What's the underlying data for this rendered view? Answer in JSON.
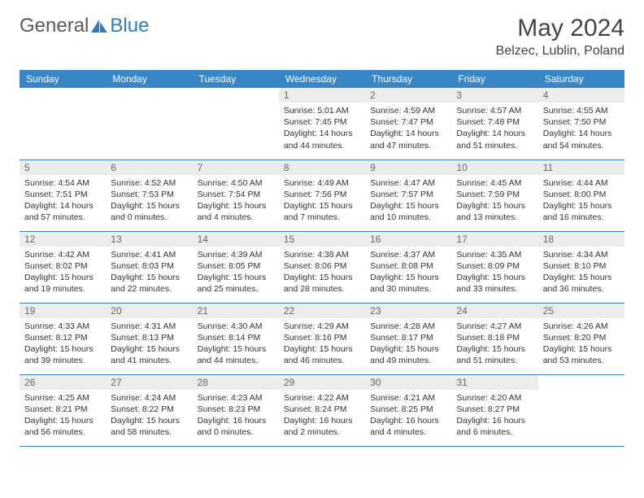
{
  "logo": {
    "text1": "General",
    "text2": "Blue"
  },
  "title": "May 2024",
  "location": "Belzec, Lublin, Poland",
  "colors": {
    "headerBg": "#3885c7",
    "headerText": "#ffffff",
    "dayNumBg": "#ececec",
    "border": "#3885c7"
  },
  "weekdays": [
    "Sunday",
    "Monday",
    "Tuesday",
    "Wednesday",
    "Thursday",
    "Friday",
    "Saturday"
  ],
  "weeks": [
    [
      null,
      null,
      null,
      {
        "n": "1",
        "sr": "5:01 AM",
        "ss": "7:45 PM",
        "dl": "14 hours and 44 minutes."
      },
      {
        "n": "2",
        "sr": "4:59 AM",
        "ss": "7:47 PM",
        "dl": "14 hours and 47 minutes."
      },
      {
        "n": "3",
        "sr": "4:57 AM",
        "ss": "7:48 PM",
        "dl": "14 hours and 51 minutes."
      },
      {
        "n": "4",
        "sr": "4:55 AM",
        "ss": "7:50 PM",
        "dl": "14 hours and 54 minutes."
      }
    ],
    [
      {
        "n": "5",
        "sr": "4:54 AM",
        "ss": "7:51 PM",
        "dl": "14 hours and 57 minutes."
      },
      {
        "n": "6",
        "sr": "4:52 AM",
        "ss": "7:53 PM",
        "dl": "15 hours and 0 minutes."
      },
      {
        "n": "7",
        "sr": "4:50 AM",
        "ss": "7:54 PM",
        "dl": "15 hours and 4 minutes."
      },
      {
        "n": "8",
        "sr": "4:49 AM",
        "ss": "7:56 PM",
        "dl": "15 hours and 7 minutes."
      },
      {
        "n": "9",
        "sr": "4:47 AM",
        "ss": "7:57 PM",
        "dl": "15 hours and 10 minutes."
      },
      {
        "n": "10",
        "sr": "4:45 AM",
        "ss": "7:59 PM",
        "dl": "15 hours and 13 minutes."
      },
      {
        "n": "11",
        "sr": "4:44 AM",
        "ss": "8:00 PM",
        "dl": "15 hours and 16 minutes."
      }
    ],
    [
      {
        "n": "12",
        "sr": "4:42 AM",
        "ss": "8:02 PM",
        "dl": "15 hours and 19 minutes."
      },
      {
        "n": "13",
        "sr": "4:41 AM",
        "ss": "8:03 PM",
        "dl": "15 hours and 22 minutes."
      },
      {
        "n": "14",
        "sr": "4:39 AM",
        "ss": "8:05 PM",
        "dl": "15 hours and 25 minutes."
      },
      {
        "n": "15",
        "sr": "4:38 AM",
        "ss": "8:06 PM",
        "dl": "15 hours and 28 minutes."
      },
      {
        "n": "16",
        "sr": "4:37 AM",
        "ss": "8:08 PM",
        "dl": "15 hours and 30 minutes."
      },
      {
        "n": "17",
        "sr": "4:35 AM",
        "ss": "8:09 PM",
        "dl": "15 hours and 33 minutes."
      },
      {
        "n": "18",
        "sr": "4:34 AM",
        "ss": "8:10 PM",
        "dl": "15 hours and 36 minutes."
      }
    ],
    [
      {
        "n": "19",
        "sr": "4:33 AM",
        "ss": "8:12 PM",
        "dl": "15 hours and 39 minutes."
      },
      {
        "n": "20",
        "sr": "4:31 AM",
        "ss": "8:13 PM",
        "dl": "15 hours and 41 minutes."
      },
      {
        "n": "21",
        "sr": "4:30 AM",
        "ss": "8:14 PM",
        "dl": "15 hours and 44 minutes."
      },
      {
        "n": "22",
        "sr": "4:29 AM",
        "ss": "8:16 PM",
        "dl": "15 hours and 46 minutes."
      },
      {
        "n": "23",
        "sr": "4:28 AM",
        "ss": "8:17 PM",
        "dl": "15 hours and 49 minutes."
      },
      {
        "n": "24",
        "sr": "4:27 AM",
        "ss": "8:18 PM",
        "dl": "15 hours and 51 minutes."
      },
      {
        "n": "25",
        "sr": "4:26 AM",
        "ss": "8:20 PM",
        "dl": "15 hours and 53 minutes."
      }
    ],
    [
      {
        "n": "26",
        "sr": "4:25 AM",
        "ss": "8:21 PM",
        "dl": "15 hours and 56 minutes."
      },
      {
        "n": "27",
        "sr": "4:24 AM",
        "ss": "8:22 PM",
        "dl": "15 hours and 58 minutes."
      },
      {
        "n": "28",
        "sr": "4:23 AM",
        "ss": "8:23 PM",
        "dl": "16 hours and 0 minutes."
      },
      {
        "n": "29",
        "sr": "4:22 AM",
        "ss": "8:24 PM",
        "dl": "16 hours and 2 minutes."
      },
      {
        "n": "30",
        "sr": "4:21 AM",
        "ss": "8:25 PM",
        "dl": "16 hours and 4 minutes."
      },
      {
        "n": "31",
        "sr": "4:20 AM",
        "ss": "8:27 PM",
        "dl": "16 hours and 6 minutes."
      },
      null
    ]
  ],
  "labels": {
    "sunrise": "Sunrise:",
    "sunset": "Sunset:",
    "daylight": "Daylight:"
  }
}
